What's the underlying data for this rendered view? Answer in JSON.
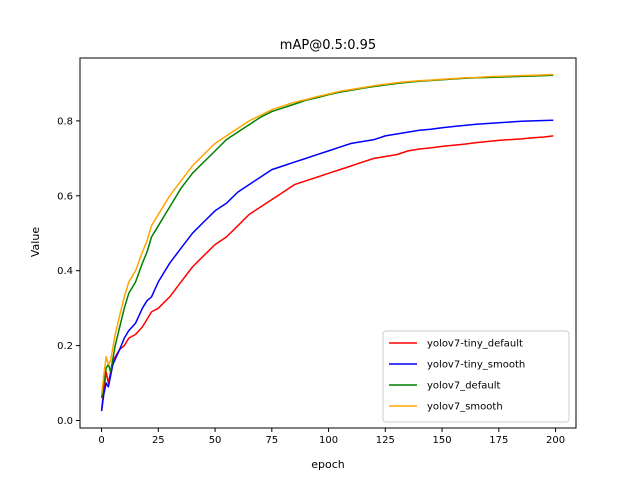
{
  "chart_data": {
    "type": "line",
    "title": "mAP@0.5:0.95",
    "xlabel": "epoch",
    "ylabel": "Value",
    "xlim": [
      -9.5,
      209
    ],
    "ylim": [
      -0.02,
      0.968
    ],
    "xticks": [
      0,
      25,
      50,
      75,
      100,
      125,
      150,
      175,
      200
    ],
    "yticks": [
      0.0,
      0.2,
      0.4,
      0.6,
      0.8
    ],
    "grid": false,
    "legend_position": "lower-right",
    "series": [
      {
        "name": "yolov7-tiny_default",
        "color": "#ff0000",
        "points": [
          [
            0,
            0.03
          ],
          [
            1,
            0.08
          ],
          [
            2,
            0.13
          ],
          [
            3,
            0.1
          ],
          [
            5,
            0.16
          ],
          [
            8,
            0.19
          ],
          [
            10,
            0.2
          ],
          [
            12,
            0.22
          ],
          [
            15,
            0.23
          ],
          [
            18,
            0.25
          ],
          [
            20,
            0.27
          ],
          [
            22,
            0.29
          ],
          [
            25,
            0.3
          ],
          [
            30,
            0.33
          ],
          [
            35,
            0.37
          ],
          [
            40,
            0.41
          ],
          [
            45,
            0.44
          ],
          [
            50,
            0.47
          ],
          [
            55,
            0.49
          ],
          [
            60,
            0.52
          ],
          [
            65,
            0.55
          ],
          [
            70,
            0.57
          ],
          [
            75,
            0.59
          ],
          [
            80,
            0.61
          ],
          [
            85,
            0.63
          ],
          [
            90,
            0.64
          ],
          [
            95,
            0.65
          ],
          [
            100,
            0.66
          ],
          [
            105,
            0.67
          ],
          [
            110,
            0.68
          ],
          [
            115,
            0.69
          ],
          [
            120,
            0.7
          ],
          [
            125,
            0.705
          ],
          [
            130,
            0.71
          ],
          [
            135,
            0.72
          ],
          [
            140,
            0.725
          ],
          [
            145,
            0.728
          ],
          [
            150,
            0.732
          ],
          [
            155,
            0.735
          ],
          [
            160,
            0.738
          ],
          [
            165,
            0.742
          ],
          [
            170,
            0.745
          ],
          [
            175,
            0.748
          ],
          [
            180,
            0.75
          ],
          [
            185,
            0.752
          ],
          [
            190,
            0.755
          ],
          [
            195,
            0.757
          ],
          [
            199,
            0.76
          ]
        ]
      },
      {
        "name": "yolov7-tiny_smooth",
        "color": "#0000ff",
        "points": [
          [
            0,
            0.025
          ],
          [
            1,
            0.07
          ],
          [
            2,
            0.1
          ],
          [
            3,
            0.09
          ],
          [
            5,
            0.15
          ],
          [
            8,
            0.19
          ],
          [
            10,
            0.22
          ],
          [
            12,
            0.24
          ],
          [
            15,
            0.26
          ],
          [
            18,
            0.3
          ],
          [
            20,
            0.32
          ],
          [
            22,
            0.33
          ],
          [
            25,
            0.37
          ],
          [
            30,
            0.42
          ],
          [
            35,
            0.46
          ],
          [
            40,
            0.5
          ],
          [
            45,
            0.53
          ],
          [
            50,
            0.56
          ],
          [
            55,
            0.58
          ],
          [
            60,
            0.61
          ],
          [
            65,
            0.63
          ],
          [
            70,
            0.65
          ],
          [
            75,
            0.67
          ],
          [
            80,
            0.68
          ],
          [
            85,
            0.69
          ],
          [
            90,
            0.7
          ],
          [
            95,
            0.71
          ],
          [
            100,
            0.72
          ],
          [
            105,
            0.73
          ],
          [
            110,
            0.74
          ],
          [
            115,
            0.745
          ],
          [
            120,
            0.75
          ],
          [
            125,
            0.76
          ],
          [
            130,
            0.765
          ],
          [
            135,
            0.77
          ],
          [
            140,
            0.775
          ],
          [
            145,
            0.778
          ],
          [
            150,
            0.782
          ],
          [
            155,
            0.785
          ],
          [
            160,
            0.788
          ],
          [
            165,
            0.791
          ],
          [
            170,
            0.793
          ],
          [
            175,
            0.795
          ],
          [
            180,
            0.797
          ],
          [
            185,
            0.799
          ],
          [
            190,
            0.8
          ],
          [
            195,
            0.801
          ],
          [
            199,
            0.802
          ]
        ]
      },
      {
        "name": "yolov7_default",
        "color": "#008000",
        "points": [
          [
            0,
            0.06
          ],
          [
            1,
            0.1
          ],
          [
            2,
            0.14
          ],
          [
            3,
            0.15
          ],
          [
            4,
            0.13
          ],
          [
            6,
            0.2
          ],
          [
            8,
            0.25
          ],
          [
            10,
            0.3
          ],
          [
            12,
            0.34
          ],
          [
            15,
            0.37
          ],
          [
            18,
            0.42
          ],
          [
            20,
            0.45
          ],
          [
            22,
            0.49
          ],
          [
            25,
            0.52
          ],
          [
            28,
            0.55
          ],
          [
            30,
            0.57
          ],
          [
            35,
            0.62
          ],
          [
            40,
            0.66
          ],
          [
            45,
            0.69
          ],
          [
            50,
            0.72
          ],
          [
            55,
            0.75
          ],
          [
            60,
            0.77
          ],
          [
            65,
            0.79
          ],
          [
            70,
            0.81
          ],
          [
            75,
            0.825
          ],
          [
            80,
            0.835
          ],
          [
            85,
            0.845
          ],
          [
            90,
            0.855
          ],
          [
            95,
            0.862
          ],
          [
            100,
            0.87
          ],
          [
            105,
            0.877
          ],
          [
            110,
            0.882
          ],
          [
            115,
            0.887
          ],
          [
            120,
            0.892
          ],
          [
            125,
            0.896
          ],
          [
            130,
            0.9
          ],
          [
            135,
            0.903
          ],
          [
            140,
            0.906
          ],
          [
            145,
            0.908
          ],
          [
            150,
            0.91
          ],
          [
            155,
            0.912
          ],
          [
            160,
            0.914
          ],
          [
            165,
            0.915
          ],
          [
            170,
            0.916
          ],
          [
            175,
            0.917
          ],
          [
            180,
            0.918
          ],
          [
            185,
            0.919
          ],
          [
            190,
            0.92
          ],
          [
            195,
            0.921
          ],
          [
            199,
            0.922
          ]
        ]
      },
      {
        "name": "yolov7_smooth",
        "color": "#ffa500",
        "points": [
          [
            0,
            0.07
          ],
          [
            1,
            0.12
          ],
          [
            2,
            0.17
          ],
          [
            3,
            0.15
          ],
          [
            4,
            0.16
          ],
          [
            6,
            0.23
          ],
          [
            8,
            0.28
          ],
          [
            10,
            0.33
          ],
          [
            12,
            0.37
          ],
          [
            15,
            0.4
          ],
          [
            18,
            0.45
          ],
          [
            20,
            0.48
          ],
          [
            22,
            0.52
          ],
          [
            25,
            0.55
          ],
          [
            28,
            0.58
          ],
          [
            30,
            0.6
          ],
          [
            35,
            0.64
          ],
          [
            40,
            0.68
          ],
          [
            45,
            0.71
          ],
          [
            50,
            0.74
          ],
          [
            55,
            0.76
          ],
          [
            60,
            0.78
          ],
          [
            65,
            0.8
          ],
          [
            70,
            0.815
          ],
          [
            75,
            0.83
          ],
          [
            80,
            0.84
          ],
          [
            85,
            0.85
          ],
          [
            90,
            0.857
          ],
          [
            95,
            0.865
          ],
          [
            100,
            0.872
          ],
          [
            105,
            0.879
          ],
          [
            110,
            0.884
          ],
          [
            115,
            0.889
          ],
          [
            120,
            0.894
          ],
          [
            125,
            0.898
          ],
          [
            130,
            0.902
          ],
          [
            135,
            0.905
          ],
          [
            140,
            0.907
          ],
          [
            145,
            0.909
          ],
          [
            150,
            0.911
          ],
          [
            155,
            0.913
          ],
          [
            160,
            0.915
          ],
          [
            165,
            0.916
          ],
          [
            170,
            0.918
          ],
          [
            175,
            0.919
          ],
          [
            180,
            0.92
          ],
          [
            185,
            0.921
          ],
          [
            190,
            0.922
          ],
          [
            195,
            0.923
          ],
          [
            199,
            0.924
          ]
        ]
      }
    ]
  }
}
